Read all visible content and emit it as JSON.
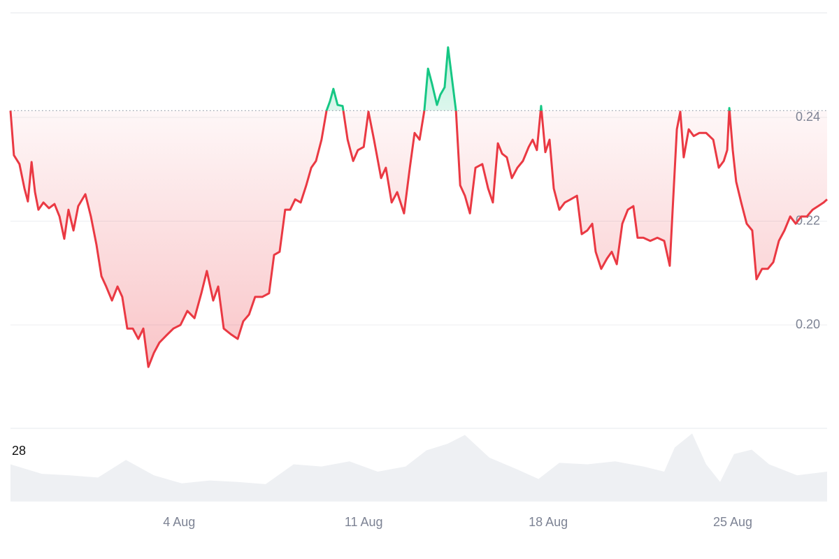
{
  "chart_data": {
    "type": "line",
    "x": [
      -2.4,
      -2.27,
      -2.06,
      -1.87,
      -1.74,
      -1.6,
      -1.47,
      -1.34,
      -1.15,
      -0.94,
      -0.73,
      -0.54,
      -0.36,
      -0.2,
      -0.01,
      0.17,
      0.44,
      0.65,
      0.86,
      1.05,
      1.23,
      1.45,
      1.66,
      1.84,
      2.03,
      2.24,
      2.45,
      2.64,
      2.83,
      3.04,
      3.25,
      3.52,
      3.78,
      4.05,
      4.31,
      4.58,
      4.84,
      5.05,
      5.29,
      5.48,
      5.69,
      5.96,
      6.22,
      6.43,
      6.65,
      6.88,
      7.15,
      7.41,
      7.6,
      7.81,
      8.02,
      8.21,
      8.4,
      8.61,
      8.82,
      9.01,
      9.19,
      9.4,
      9.59,
      9.72,
      9.85,
      10.01,
      10.2,
      10.39,
      10.6,
      10.78,
      11.0,
      11.18,
      11.39,
      11.66,
      11.84,
      12.06,
      12.27,
      12.53,
      12.75,
      12.93,
      13.12,
      13.3,
      13.44,
      13.59,
      13.78,
      13.91,
      14.07,
      14.2,
      14.34,
      14.5,
      14.66,
      14.84,
      15.03,
      15.24,
      15.5,
      15.72,
      15.9,
      16.09,
      16.25,
      16.43,
      16.62,
      16.83,
      17.04,
      17.26,
      17.41,
      17.57,
      17.73,
      17.89,
      18.05,
      18.21,
      18.42,
      18.63,
      18.85,
      19.09,
      19.27,
      19.48,
      19.67,
      19.8,
      20.01,
      20.23,
      20.41,
      20.6,
      20.81,
      21.02,
      21.23,
      21.39,
      21.61,
      21.87,
      22.14,
      22.4,
      22.61,
      22.72,
      22.88,
      23.01,
      23.14,
      23.33,
      23.52,
      23.73,
      23.99,
      24.26,
      24.47,
      24.66,
      24.79,
      24.87,
      25.0,
      25.13,
      25.32,
      25.53,
      25.74,
      25.9,
      26.11,
      26.33,
      26.54,
      26.75,
      26.96,
      27.18,
      27.39,
      27.6,
      27.81,
      28.03,
      28.24,
      28.45,
      28.58
    ],
    "values": [
      0.2413,
      0.2327,
      0.231,
      0.2263,
      0.2238,
      0.2314,
      0.2256,
      0.2222,
      0.2236,
      0.2225,
      0.2233,
      0.2209,
      0.2166,
      0.2222,
      0.2182,
      0.2229,
      0.2252,
      0.2209,
      0.2155,
      0.2094,
      0.2074,
      0.2047,
      0.2074,
      0.2054,
      0.1993,
      0.1993,
      0.1973,
      0.1993,
      0.1919,
      0.1946,
      0.1966,
      0.198,
      0.1993,
      0.2,
      0.2027,
      0.2013,
      0.2061,
      0.2104,
      0.2047,
      0.2074,
      0.1993,
      0.1982,
      0.1973,
      0.2007,
      0.202,
      0.2054,
      0.2054,
      0.2061,
      0.2135,
      0.2141,
      0.2222,
      0.2222,
      0.2242,
      0.2236,
      0.2269,
      0.2303,
      0.2316,
      0.2357,
      0.2413,
      0.2431,
      0.2455,
      0.2424,
      0.2422,
      0.2357,
      0.2316,
      0.2337,
      0.2343,
      0.2411,
      0.2357,
      0.2283,
      0.2303,
      0.2236,
      0.2256,
      0.2215,
      0.2303,
      0.237,
      0.2357,
      0.2413,
      0.2494,
      0.2465,
      0.2424,
      0.2444,
      0.2458,
      0.2535,
      0.2478,
      0.2413,
      0.2269,
      0.2249,
      0.2215,
      0.2303,
      0.231,
      0.2263,
      0.2236,
      0.235,
      0.233,
      0.2323,
      0.2283,
      0.2303,
      0.2316,
      0.2343,
      0.2357,
      0.2337,
      0.2422,
      0.2333,
      0.2357,
      0.2263,
      0.2222,
      0.2236,
      0.2242,
      0.2249,
      0.2175,
      0.2182,
      0.2195,
      0.2141,
      0.2108,
      0.2128,
      0.2141,
      0.2117,
      0.2195,
      0.2222,
      0.2229,
      0.2168,
      0.2168,
      0.2162,
      0.2168,
      0.2162,
      0.2114,
      0.2222,
      0.2377,
      0.2411,
      0.2323,
      0.2377,
      0.2364,
      0.237,
      0.237,
      0.2357,
      0.2303,
      0.2316,
      0.2337,
      0.2418,
      0.2337,
      0.2276,
      0.2236,
      0.2195,
      0.2182,
      0.2088,
      0.2108,
      0.2108,
      0.2121,
      0.2162,
      0.2182,
      0.2209,
      0.2195,
      0.2209,
      0.2209,
      0.2222,
      0.2229,
      0.2236,
      0.2242
    ],
    "baseline": 0.2413,
    "up_color": "#16c784",
    "down_color": "#ea3943",
    "xlim": [
      -2.4,
      28.58
    ],
    "xticks": [
      {
        "value": 4,
        "label": "4 Aug"
      },
      {
        "value": 11,
        "label": "11 Aug"
      },
      {
        "value": 18,
        "label": "18 Aug"
      },
      {
        "value": 25,
        "label": "25 Aug"
      }
    ],
    "ylim": [
      0.18,
      0.26
    ],
    "yticks": [
      {
        "value": 0.2,
        "label": "0.20"
      },
      {
        "value": 0.22,
        "label": "0.22"
      },
      {
        "value": 0.24,
        "label": "0.24"
      }
    ],
    "grid": true,
    "annotations": [
      "28"
    ],
    "volume": {
      "color": "#eef0f3",
      "ylim": [
        0,
        100
      ],
      "x": [
        -2.4,
        -1.21,
        -0.15,
        0.92,
        1.98,
        3.04,
        4.1,
        5.16,
        6.22,
        7.28,
        8.34,
        9.4,
        10.46,
        11.53,
        12.59,
        13.38,
        14.18,
        14.84,
        15.77,
        16.83,
        17.63,
        18.42,
        19.48,
        20.54,
        21.61,
        22.4,
        22.8,
        23.46,
        23.99,
        24.52,
        25.05,
        25.72,
        26.38,
        27.44,
        28.58
      ],
      "values": [
        50,
        37,
        35,
        32,
        56,
        35,
        24,
        28,
        26,
        23,
        50,
        47,
        54,
        40,
        47,
        69,
        78,
        90,
        59,
        43,
        30,
        52,
        50,
        54,
        47,
        40,
        73,
        92,
        50,
        26,
        64,
        70,
        50,
        35,
        40
      ]
    }
  }
}
